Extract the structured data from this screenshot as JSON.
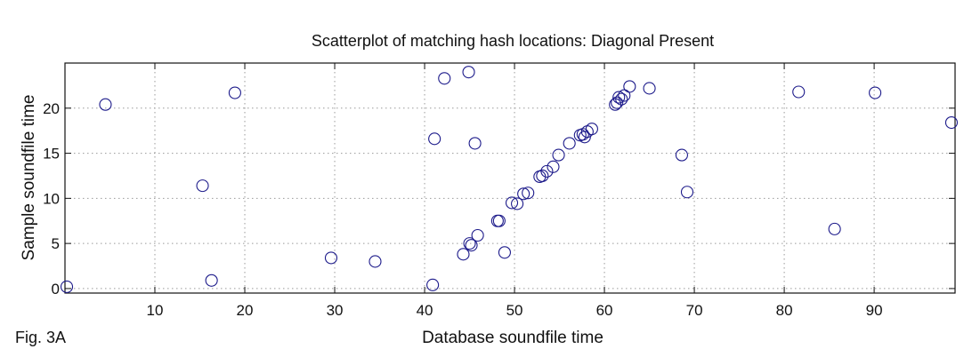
{
  "figure_label": "Fig. 3A",
  "chart_data": {
    "type": "scatter",
    "title": "Scatterplot of matching hash locations:  Diagonal Present",
    "xlabel": "Database soundfile time",
    "ylabel": "Sample soundfile time",
    "xlim": [
      0,
      99
    ],
    "ylim": [
      -0.5,
      25
    ],
    "xticks": [
      10,
      20,
      30,
      40,
      50,
      60,
      70,
      80,
      90
    ],
    "yticks": [
      0,
      5,
      10,
      15,
      20
    ],
    "grid": true,
    "marker": "open-circle",
    "marker_color": "#1c1a8a",
    "points": [
      {
        "x": 0.2,
        "y": 0.2
      },
      {
        "x": 4.5,
        "y": 20.4
      },
      {
        "x": 15.3,
        "y": 11.4
      },
      {
        "x": 16.3,
        "y": 0.9
      },
      {
        "x": 18.9,
        "y": 21.7
      },
      {
        "x": 29.6,
        "y": 3.4
      },
      {
        "x": 34.5,
        "y": 3.0
      },
      {
        "x": 40.9,
        "y": 0.4
      },
      {
        "x": 41.1,
        "y": 16.6
      },
      {
        "x": 42.2,
        "y": 23.3
      },
      {
        "x": 44.3,
        "y": 3.8
      },
      {
        "x": 44.9,
        "y": 24.0
      },
      {
        "x": 45.0,
        "y": 5.0
      },
      {
        "x": 45.2,
        "y": 4.8
      },
      {
        "x": 45.6,
        "y": 16.1
      },
      {
        "x": 45.9,
        "y": 5.9
      },
      {
        "x": 48.1,
        "y": 7.5
      },
      {
        "x": 48.3,
        "y": 7.5
      },
      {
        "x": 48.9,
        "y": 4.0
      },
      {
        "x": 49.7,
        "y": 9.5
      },
      {
        "x": 50.3,
        "y": 9.4
      },
      {
        "x": 51.0,
        "y": 10.5
      },
      {
        "x": 51.5,
        "y": 10.6
      },
      {
        "x": 52.8,
        "y": 12.4
      },
      {
        "x": 53.1,
        "y": 12.5
      },
      {
        "x": 53.6,
        "y": 13.0
      },
      {
        "x": 54.3,
        "y": 13.5
      },
      {
        "x": 54.9,
        "y": 14.8
      },
      {
        "x": 56.1,
        "y": 16.1
      },
      {
        "x": 57.3,
        "y": 17.0
      },
      {
        "x": 57.6,
        "y": 17.1
      },
      {
        "x": 57.8,
        "y": 16.8
      },
      {
        "x": 58.1,
        "y": 17.4
      },
      {
        "x": 58.6,
        "y": 17.7
      },
      {
        "x": 61.2,
        "y": 20.4
      },
      {
        "x": 61.4,
        "y": 20.6
      },
      {
        "x": 61.6,
        "y": 21.2
      },
      {
        "x": 61.9,
        "y": 21.0
      },
      {
        "x": 62.2,
        "y": 21.4
      },
      {
        "x": 62.8,
        "y": 22.4
      },
      {
        "x": 65.0,
        "y": 22.2
      },
      {
        "x": 68.6,
        "y": 14.8
      },
      {
        "x": 69.2,
        "y": 10.7
      },
      {
        "x": 81.6,
        "y": 21.8
      },
      {
        "x": 85.6,
        "y": 6.6
      },
      {
        "x": 90.1,
        "y": 21.7
      },
      {
        "x": 98.6,
        "y": 18.4
      }
    ]
  }
}
